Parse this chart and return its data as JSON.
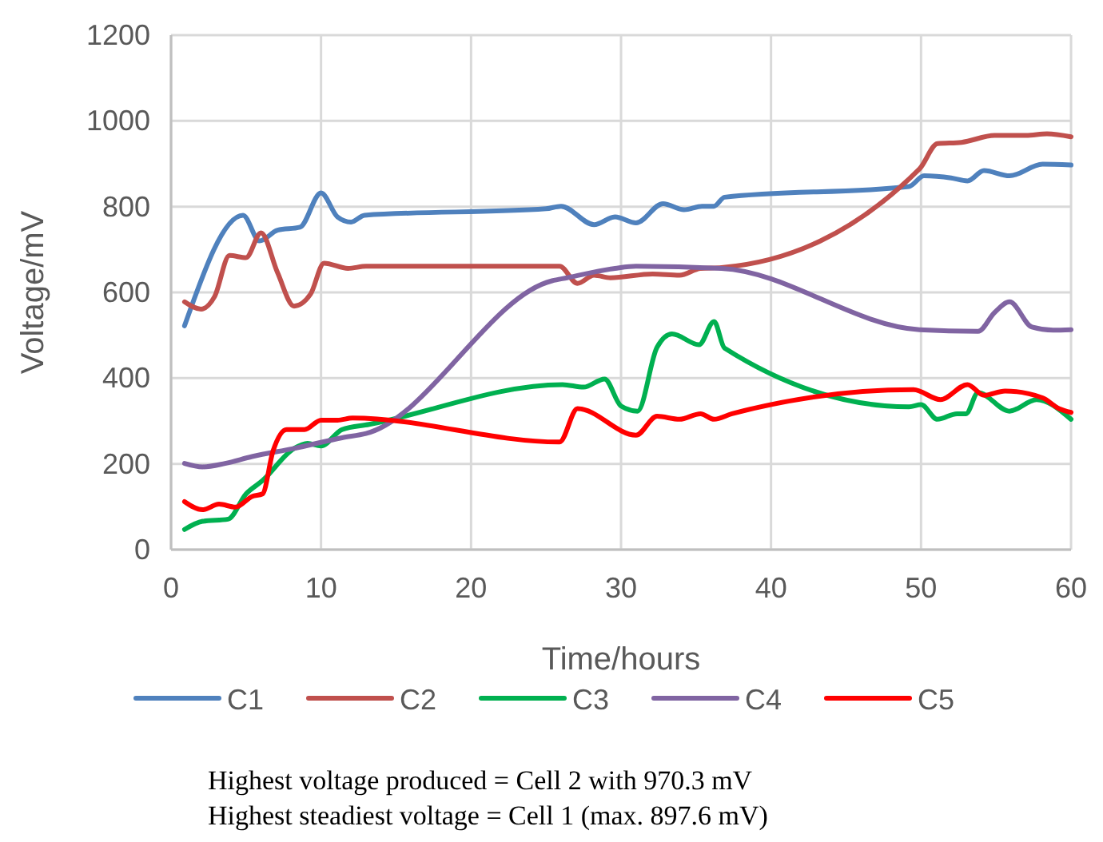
{
  "chart_data": {
    "type": "line",
    "xlabel": "Time/hours",
    "ylabel": "Voltage/mV",
    "xlim": [
      0,
      60
    ],
    "xticks": [
      0,
      10,
      20,
      30,
      40,
      50,
      60
    ],
    "ylim": [
      0,
      1200
    ],
    "yticks": [
      0,
      200,
      400,
      600,
      800,
      1000,
      1200
    ],
    "grid": true,
    "legend": "bottom",
    "line_style": "solid",
    "marker": "none",
    "series": [
      {
        "name": "C1",
        "color": "#4f81bd",
        "x": [
          0.9,
          4.8,
          5.9,
          7.1,
          8.6,
          10,
          11.1,
          12,
          12.9,
          25,
          26,
          28.2,
          29.6,
          31,
          32.8,
          34.2,
          35.4,
          36.2,
          36.9,
          49.2,
          50.2,
          52,
          53.1,
          54.2,
          55.9,
          58.1,
          60
        ],
        "values": [
          522,
          780,
          720,
          745,
          752,
          832,
          776,
          764,
          780,
          795,
          801,
          758,
          776,
          762,
          807,
          793,
          801,
          801,
          822,
          847,
          872,
          867,
          860,
          884,
          872,
          899,
          897
        ]
      },
      {
        "name": "C2",
        "color": "#c0504d",
        "x": [
          0.9,
          2,
          2.9,
          3.9,
          5,
          6,
          7.1,
          8.2,
          9.3,
          10.2,
          11.8,
          13,
          25.9,
          27.1,
          28.2,
          29.3,
          32.1,
          33.9,
          35.3,
          36.7,
          49.9,
          51.1,
          52.7,
          54.9,
          57,
          58.4,
          60
        ],
        "values": [
          578,
          561,
          590,
          686,
          681,
          739,
          646,
          568,
          596,
          668,
          656,
          661,
          661,
          621,
          640,
          634,
          643,
          640,
          656,
          658,
          888,
          947,
          950,
          966,
          966,
          970,
          963
        ]
      },
      {
        "name": "C3",
        "color": "#00b050",
        "x": [
          0.9,
          2.1,
          3.8,
          5,
          6.1,
          8.2,
          9.1,
          10,
          11.4,
          13.2,
          26.1,
          27.5,
          28.9,
          30,
          31.1,
          32.4,
          33.4,
          35.2,
          36.2,
          36.9,
          49.2,
          50,
          51.1,
          52.4,
          53,
          53.8,
          55.9,
          57.7,
          60
        ],
        "values": [
          47,
          66,
          71,
          130,
          161,
          236,
          248,
          242,
          280,
          292,
          385,
          379,
          398,
          335,
          323,
          472,
          503,
          478,
          532,
          470,
          333,
          338,
          304,
          317,
          317,
          366,
          323,
          350,
          304
        ]
      },
      {
        "name": "C4",
        "color": "#8064a2",
        "x": [
          0.9,
          2.1,
          3.6,
          5.4,
          8.2,
          11.4,
          13,
          25.4,
          26.4,
          29.6,
          31,
          36.7,
          49.9,
          53.8,
          54.9,
          55.9,
          57.4,
          58.8,
          60
        ],
        "values": [
          201,
          193,
          201,
          217,
          236,
          261,
          271,
          627,
          634,
          656,
          661,
          656,
          513,
          509,
          553,
          578,
          519,
          512,
          513
        ]
      },
      {
        "name": "C5",
        "color": "#ff0000",
        "x": [
          0.9,
          2.1,
          3.2,
          4.3,
          5.4,
          6.1,
          6.8,
          7.7,
          8.9,
          10,
          11.1,
          12.1,
          25.9,
          27.1,
          31,
          32.4,
          33.9,
          35.3,
          36.2,
          37.4,
          49.5,
          51.3,
          53.1,
          54.2,
          55.6,
          58.1,
          59.2,
          60
        ],
        "values": [
          112,
          93,
          106,
          99,
          124,
          130,
          230,
          280,
          280,
          302,
          302,
          307,
          251,
          329,
          267,
          311,
          304,
          317,
          304,
          317,
          373,
          350,
          385,
          360,
          370,
          354,
          329,
          320
        ]
      }
    ],
    "annotations": [
      "Highest voltage produced = Cell 2 with 970.3 mV",
      "Highest steadiest voltage = Cell 1 (max. 897.6 mV)"
    ]
  }
}
